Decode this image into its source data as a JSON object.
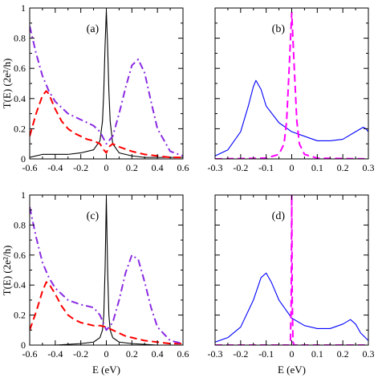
{
  "chart_data": [
    {
      "type": "line",
      "panel_label": "(a)",
      "xlabel": "",
      "ylabel": "T(E) (2e²/h)",
      "xlim": [
        -0.6,
        0.6
      ],
      "ylim": [
        0,
        1
      ],
      "xticks": [
        "-0.6",
        "-0.4",
        "-0.2",
        "0",
        "0.2",
        "0.4",
        "0.6"
      ],
      "yticks": [
        "0",
        "0.2",
        "0.4",
        "0.6",
        "0.8",
        "1"
      ],
      "series": [
        {
          "style": "solid",
          "color": "#000000",
          "x": [
            -0.6,
            -0.5,
            -0.4,
            -0.3,
            -0.2,
            -0.1,
            -0.05,
            -0.03,
            -0.02,
            -0.01,
            0,
            0.01,
            0.02,
            0.03,
            0.05,
            0.1,
            0.2,
            0.3,
            0.4,
            0.6
          ],
          "y": [
            0.01,
            0.03,
            0.03,
            0.03,
            0.04,
            0.06,
            0.12,
            0.25,
            0.45,
            0.75,
            0.98,
            0.75,
            0.45,
            0.25,
            0.1,
            0.04,
            0.02,
            0.01,
            0.01,
            0.01
          ]
        },
        {
          "style": "dashed",
          "color": "#ff0000",
          "x": [
            -0.6,
            -0.55,
            -0.5,
            -0.47,
            -0.45,
            -0.4,
            -0.35,
            -0.3,
            -0.25,
            -0.2,
            -0.15,
            -0.1,
            -0.05,
            -0.02,
            0,
            0.02,
            0.05,
            0.1,
            0.2,
            0.3,
            0.4,
            0.5,
            0.6
          ],
          "y": [
            0.15,
            0.3,
            0.42,
            0.45,
            0.43,
            0.33,
            0.25,
            0.2,
            0.17,
            0.15,
            0.13,
            0.12,
            0.1,
            0.06,
            0.04,
            0.08,
            0.1,
            0.08,
            0.05,
            0.03,
            0.02,
            0.01,
            0.01
          ]
        },
        {
          "style": "dashdot",
          "color": "#8a2be2",
          "x": [
            -0.6,
            -0.55,
            -0.5,
            -0.45,
            -0.4,
            -0.3,
            -0.2,
            -0.15,
            -0.1,
            -0.05,
            0,
            0.05,
            0.1,
            0.15,
            0.2,
            0.25,
            0.3,
            0.35,
            0.4,
            0.5,
            0.6
          ],
          "y": [
            0.88,
            0.7,
            0.55,
            0.45,
            0.38,
            0.3,
            0.26,
            0.24,
            0.22,
            0.18,
            0.1,
            0.15,
            0.3,
            0.47,
            0.62,
            0.66,
            0.57,
            0.38,
            0.2,
            0.05,
            0.02
          ]
        }
      ]
    },
    {
      "type": "line",
      "panel_label": "(b)",
      "xlabel": "",
      "ylabel": "",
      "xlim": [
        -0.3,
        0.3
      ],
      "ylim": [
        0,
        1
      ],
      "xticks": [
        "-0.3",
        "-0.2",
        "-0.1",
        "0",
        "0.1",
        "0.2",
        "0.3"
      ],
      "yticks": [],
      "series": [
        {
          "style": "solid",
          "color": "#0000ff",
          "x": [
            -0.3,
            -0.25,
            -0.2,
            -0.17,
            -0.15,
            -0.14,
            -0.12,
            -0.1,
            -0.05,
            0,
            0.05,
            0.1,
            0.15,
            0.2,
            0.25,
            0.27,
            0.28,
            0.29,
            0.3
          ],
          "y": [
            0.02,
            0.06,
            0.18,
            0.35,
            0.48,
            0.52,
            0.46,
            0.35,
            0.24,
            0.18,
            0.15,
            0.12,
            0.12,
            0.13,
            0.18,
            0.2,
            0.21,
            0.2,
            0.18
          ]
        },
        {
          "style": "dashed",
          "color": "#ff00ff",
          "x": [
            -0.3,
            -0.1,
            -0.05,
            -0.03,
            -0.02,
            -0.01,
            0,
            0.01,
            0.02,
            0.03,
            0.05,
            0.1,
            0.3
          ],
          "y": [
            0,
            0.005,
            0.03,
            0.1,
            0.25,
            0.6,
            0.97,
            0.6,
            0.25,
            0.1,
            0.03,
            0.005,
            0
          ]
        }
      ]
    },
    {
      "type": "line",
      "panel_label": "(c)",
      "xlabel": "E (eV)",
      "ylabel": "T(E) (2e²/h)",
      "xlim": [
        -0.6,
        0.6
      ],
      "ylim": [
        0,
        1
      ],
      "xticks": [
        "-0.6",
        "-0.4",
        "-0.2",
        "0",
        "0.2",
        "0.4",
        "0.6"
      ],
      "yticks": [
        "0",
        "0.2",
        "0.4",
        "0.6",
        "0.8",
        "1"
      ],
      "series": [
        {
          "style": "solid",
          "color": "#000000",
          "x": [
            -0.6,
            -0.4,
            -0.2,
            -0.1,
            -0.05,
            -0.03,
            -0.02,
            -0.01,
            0,
            0.01,
            0.02,
            0.03,
            0.05,
            0.1,
            0.2,
            0.4,
            0.6
          ],
          "y": [
            0,
            0,
            0.01,
            0.02,
            0.05,
            0.1,
            0.2,
            0.5,
            0.98,
            0.5,
            0.2,
            0.1,
            0.05,
            0.02,
            0.01,
            0,
            0
          ]
        },
        {
          "style": "dashed",
          "color": "#ff0000",
          "x": [
            -0.6,
            -0.55,
            -0.5,
            -0.47,
            -0.45,
            -0.4,
            -0.35,
            -0.3,
            -0.25,
            -0.2,
            -0.15,
            -0.1,
            -0.05,
            0,
            0.05,
            0.1,
            0.15,
            0.2,
            0.3,
            0.4,
            0.5,
            0.6
          ],
          "y": [
            0.1,
            0.22,
            0.36,
            0.42,
            0.41,
            0.34,
            0.26,
            0.2,
            0.17,
            0.15,
            0.14,
            0.13,
            0.13,
            0.12,
            0.1,
            0.08,
            0.06,
            0.05,
            0.03,
            0.02,
            0.01,
            0.01
          ]
        },
        {
          "style": "dashdot",
          "color": "#8a2be2",
          "x": [
            -0.6,
            -0.55,
            -0.5,
            -0.45,
            -0.4,
            -0.3,
            -0.2,
            -0.1,
            -0.05,
            0,
            0.05,
            0.1,
            0.15,
            0.2,
            0.25,
            0.3,
            0.35,
            0.4,
            0.5,
            0.6
          ],
          "y": [
            0.92,
            0.72,
            0.55,
            0.45,
            0.38,
            0.3,
            0.27,
            0.25,
            0.2,
            0.1,
            0.15,
            0.3,
            0.48,
            0.6,
            0.57,
            0.42,
            0.25,
            0.12,
            0.03,
            0.01
          ]
        }
      ]
    },
    {
      "type": "line",
      "panel_label": "(d)",
      "xlabel": "E (eV)",
      "ylabel": "",
      "xlim": [
        -0.3,
        0.3
      ],
      "ylim": [
        0,
        1
      ],
      "xticks": [
        "-0.3",
        "-0.2",
        "-0.1",
        "0",
        "0.1",
        "0.2",
        "0.3"
      ],
      "yticks": [],
      "series": [
        {
          "style": "solid",
          "color": "#0000ff",
          "x": [
            -0.3,
            -0.25,
            -0.2,
            -0.15,
            -0.12,
            -0.1,
            -0.08,
            -0.05,
            0,
            0.05,
            0.1,
            0.15,
            0.2,
            0.23,
            0.25,
            0.27,
            0.3
          ],
          "y": [
            0.02,
            0.05,
            0.12,
            0.3,
            0.45,
            0.48,
            0.42,
            0.3,
            0.18,
            0.13,
            0.11,
            0.11,
            0.14,
            0.17,
            0.14,
            0.08,
            0.03
          ]
        },
        {
          "style": "dashed",
          "color": "#ff00ff",
          "x": [
            -0.3,
            -0.01,
            -0.005,
            -0.002,
            0,
            0.002,
            0.005,
            0.01,
            0.3
          ],
          "y": [
            0,
            0,
            0.02,
            0.3,
            1,
            0.3,
            0.02,
            0,
            0
          ]
        }
      ]
    }
  ]
}
